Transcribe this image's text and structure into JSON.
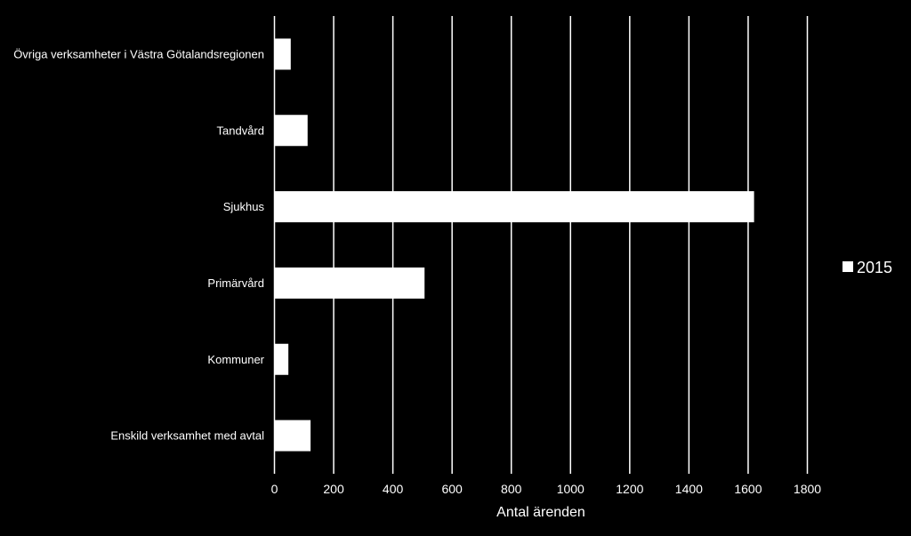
{
  "colors": {
    "background": "#000000",
    "bar": "#ffffff",
    "grid": "#ffffff",
    "text": "#ffffff"
  },
  "chart_data": {
    "type": "bar",
    "orientation": "horizontal",
    "categories": [
      "Övriga verksamheter i Västra Götalandsregionen",
      "Tandvård",
      "Sjukhus",
      "Primärvård",
      "Kommuner",
      "Enskild verksamhet med avtal"
    ],
    "series": [
      {
        "name": "2015",
        "values": [
          55,
          112,
          1620,
          507,
          47,
          122
        ]
      }
    ],
    "xlabel": "Antal ärenden",
    "ylabel": "",
    "xlim": [
      0,
      1800
    ],
    "xticks": [
      "0",
      "200",
      "400",
      "600",
      "800",
      "1000",
      "1200",
      "1400",
      "1600",
      "1800"
    ],
    "grid": "vertical",
    "legend_position": "right"
  }
}
